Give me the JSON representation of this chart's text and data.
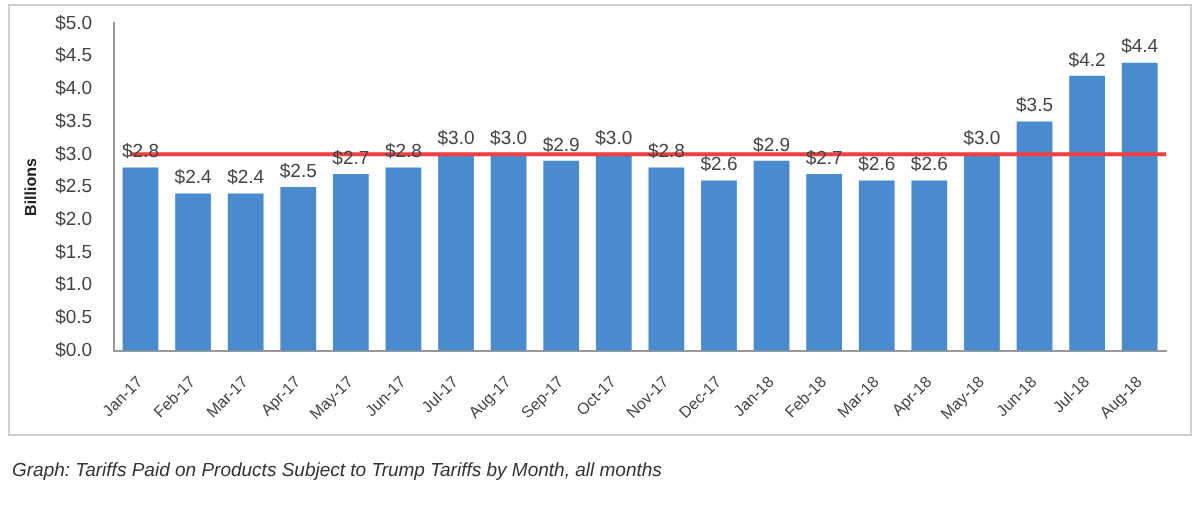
{
  "chart_data": {
    "type": "bar",
    "ylabel": "Billions",
    "categories": [
      "Jan-17",
      "Feb-17",
      "Mar-17",
      "Apr-17",
      "May-17",
      "Jun-17",
      "Jul-17",
      "Aug-17",
      "Sep-17",
      "Oct-17",
      "Nov-17",
      "Dec-17",
      "Jan-18",
      "Feb-18",
      "Mar-18",
      "Apr-18",
      "May-18",
      "Jun-18",
      "Jul-18",
      "Aug-18"
    ],
    "values": [
      2.8,
      2.4,
      2.4,
      2.5,
      2.7,
      2.8,
      3.0,
      3.0,
      2.9,
      3.0,
      2.8,
      2.6,
      2.9,
      2.7,
      2.6,
      2.6,
      3.0,
      3.5,
      4.2,
      4.4
    ],
    "value_labels": [
      "$2.8",
      "$2.4",
      "$2.4",
      "$2.5",
      "$2.7",
      "$2.8",
      "$3.0",
      "$3.0",
      "$2.9",
      "$3.0",
      "$2.8",
      "$2.6",
      "$2.9",
      "$2.7",
      "$2.6",
      "$2.6",
      "$3.0",
      "$3.5",
      "$4.2",
      "$4.4"
    ],
    "color": "#4a8bd0",
    "ylim": [
      0,
      5
    ],
    "yticks": [
      {
        "value": 0,
        "label": "$0.0"
      },
      {
        "value": 0.5,
        "label": "$0.5"
      },
      {
        "value": 1,
        "label": "$1.0"
      },
      {
        "value": 1.5,
        "label": "$1.5"
      },
      {
        "value": 2,
        "label": "$2.0"
      },
      {
        "value": 2.5,
        "label": "$2.5"
      },
      {
        "value": 3,
        "label": "$3.0"
      },
      {
        "value": 3.5,
        "label": "$3.5"
      },
      {
        "value": 4,
        "label": "$4.0"
      },
      {
        "value": 4.5,
        "label": "$4.5"
      },
      {
        "value": 5,
        "label": "$5.0"
      }
    ],
    "ref_lines": [
      {
        "axis": "y",
        "value": 3.0,
        "color": "#f04040"
      }
    ],
    "annotations": [
      "Graph: Tariffs Paid on Products Subject to Trump Tariffs by Month, all months"
    ]
  }
}
